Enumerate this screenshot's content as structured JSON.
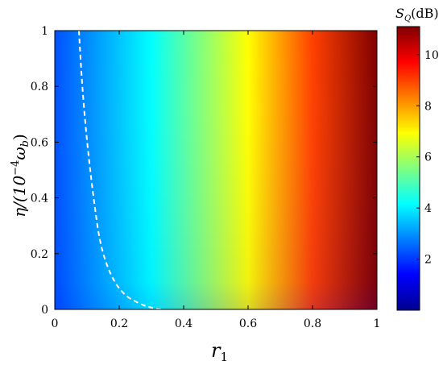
{
  "chart_data": {
    "type": "heatmap",
    "title": "",
    "xlabel": "r",
    "xlabel_sub": "1",
    "ylabel_main": "η/(10",
    "ylabel_exp": "−4",
    "ylabel_omega": "ω",
    "ylabel_sub": "b",
    "ylabel_close": ")",
    "xlim": [
      0,
      1
    ],
    "ylim": [
      0,
      1
    ],
    "x_ticks": [
      0,
      0.2,
      0.4,
      0.6,
      0.8,
      1
    ],
    "x_tick_labels": [
      "0",
      "0.2",
      "0.4",
      "0.6",
      "0.8",
      "1"
    ],
    "y_ticks": [
      0,
      0.2,
      0.4,
      0.6,
      0.8,
      1
    ],
    "y_tick_labels": [
      "0",
      "0.2",
      "0.4",
      "0.6",
      "0.8",
      "1"
    ],
    "colorbar": {
      "label_main": "S",
      "label_sub": "Q",
      "label_unit": "(dB)",
      "range": [
        0,
        11.1
      ],
      "ticks": [
        2,
        4,
        6,
        8,
        10
      ],
      "tick_labels": [
        "2",
        "4",
        "6",
        "8",
        "10"
      ],
      "colormap": "jet"
    },
    "grid": false,
    "dashed_contour": {
      "color": "#ffffff",
      "style": "dashed",
      "points": [
        [
          0.075,
          1.0
        ],
        [
          0.085,
          0.8
        ],
        [
          0.1,
          0.6
        ],
        [
          0.12,
          0.4
        ],
        [
          0.145,
          0.2
        ],
        [
          0.2,
          0.06
        ],
        [
          0.28,
          0.01
        ],
        [
          0.33,
          0.0
        ]
      ]
    }
  }
}
